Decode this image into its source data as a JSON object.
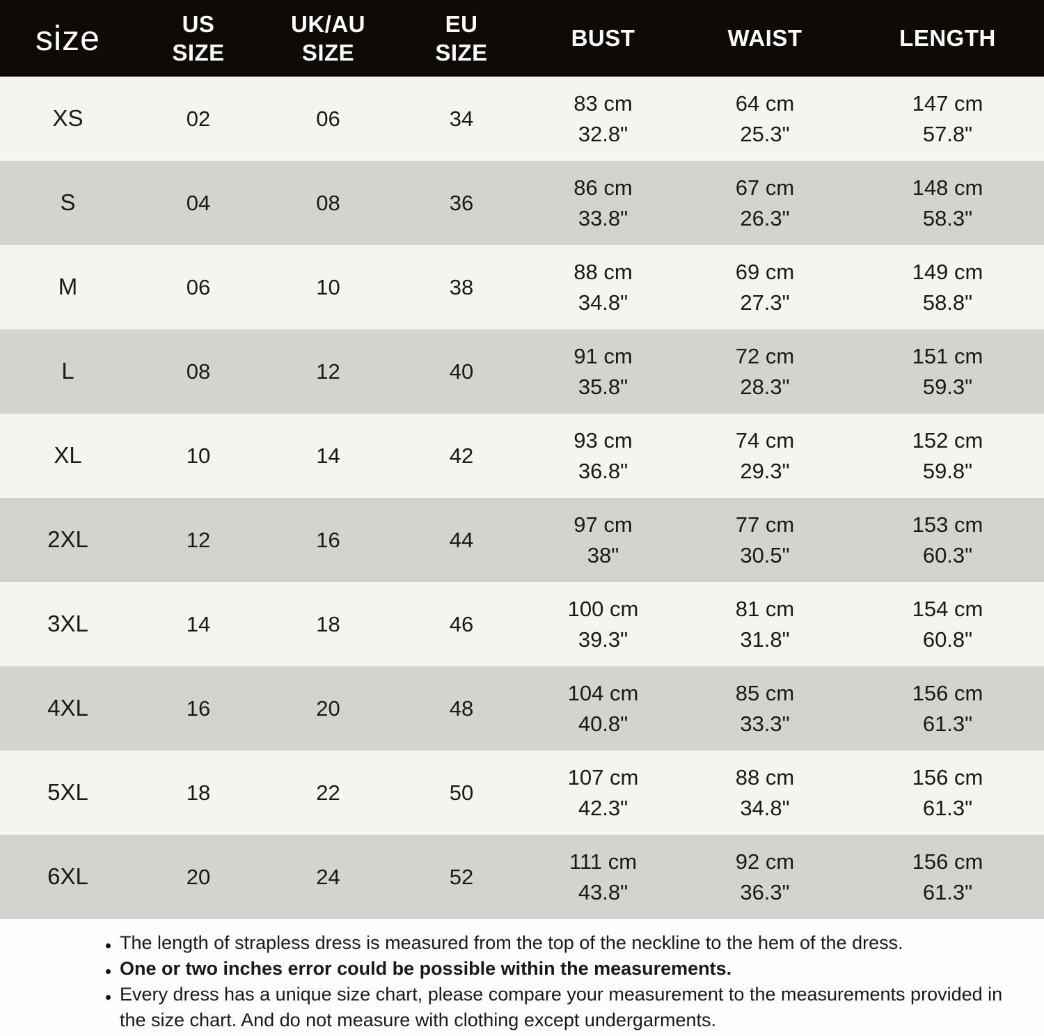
{
  "colors": {
    "header_bg": "#0d0a08",
    "header_text": "#ffffff",
    "row_light": "#f6f4f1",
    "row_dark": "#d4d3d0",
    "text_color": "#1b1916",
    "page_bg": "#fdfdfd"
  },
  "chart_data": {
    "type": "table",
    "title": "size",
    "columns": [
      "size",
      "US\nSIZE",
      "UK/AU\nSIZE",
      "EU\nSIZE",
      "BUST",
      "WAIST",
      "LENGTH"
    ],
    "rows": [
      {
        "size": "XS",
        "us": "02",
        "ukau": "06",
        "eu": "34",
        "bust": "83 cm\n32.8\"",
        "waist": "64 cm\n25.3\"",
        "length": "147 cm\n57.8\""
      },
      {
        "size": "S",
        "us": "04",
        "ukau": "08",
        "eu": "36",
        "bust": "86 cm\n33.8\"",
        "waist": "67 cm\n26.3\"",
        "length": "148 cm\n58.3\""
      },
      {
        "size": "M",
        "us": "06",
        "ukau": "10",
        "eu": "38",
        "bust": "88 cm\n34.8\"",
        "waist": "69 cm\n27.3\"",
        "length": "149 cm\n58.8\""
      },
      {
        "size": "L",
        "us": "08",
        "ukau": "12",
        "eu": "40",
        "bust": "91 cm\n35.8\"",
        "waist": "72 cm\n28.3\"",
        "length": "151 cm\n59.3\""
      },
      {
        "size": "XL",
        "us": "10",
        "ukau": "14",
        "eu": "42",
        "bust": "93 cm\n36.8\"",
        "waist": "74 cm\n29.3\"",
        "length": "152 cm\n59.8\""
      },
      {
        "size": "2XL",
        "us": "12",
        "ukau": "16",
        "eu": "44",
        "bust": "97 cm\n38\"",
        "waist": "77 cm\n30.5\"",
        "length": "153 cm\n60.3\""
      },
      {
        "size": "3XL",
        "us": "14",
        "ukau": "18",
        "eu": "46",
        "bust": "100 cm\n39.3\"",
        "waist": "81 cm\n31.8\"",
        "length": "154 cm\n60.8\""
      },
      {
        "size": "4XL",
        "us": "16",
        "ukau": "20",
        "eu": "48",
        "bust": "104 cm\n40.8\"",
        "waist": "85 cm\n33.3\"",
        "length": "156 cm\n61.3\""
      },
      {
        "size": "5XL",
        "us": "18",
        "ukau": "22",
        "eu": "50",
        "bust": "107 cm\n42.3\"",
        "waist": "88 cm\n34.8\"",
        "length": "156 cm\n61.3\""
      },
      {
        "size": "6XL",
        "us": "20",
        "ukau": "24",
        "eu": "52",
        "bust": "111 cm\n43.8\"",
        "waist": "92 cm\n36.3\"",
        "length": "156 cm\n61.3\""
      }
    ]
  },
  "notes": [
    {
      "text": "The length of strapless dress is measured from the top of the neckline to the hem of the dress.",
      "emphasis": false
    },
    {
      "text": "One or two inches error could be possible within the measurements.",
      "emphasis": true
    },
    {
      "text": "Every dress has a unique size chart, please compare your measurement to the measurements provided in the size chart. And do not measure with clothing except undergarments.",
      "emphasis": false
    }
  ]
}
